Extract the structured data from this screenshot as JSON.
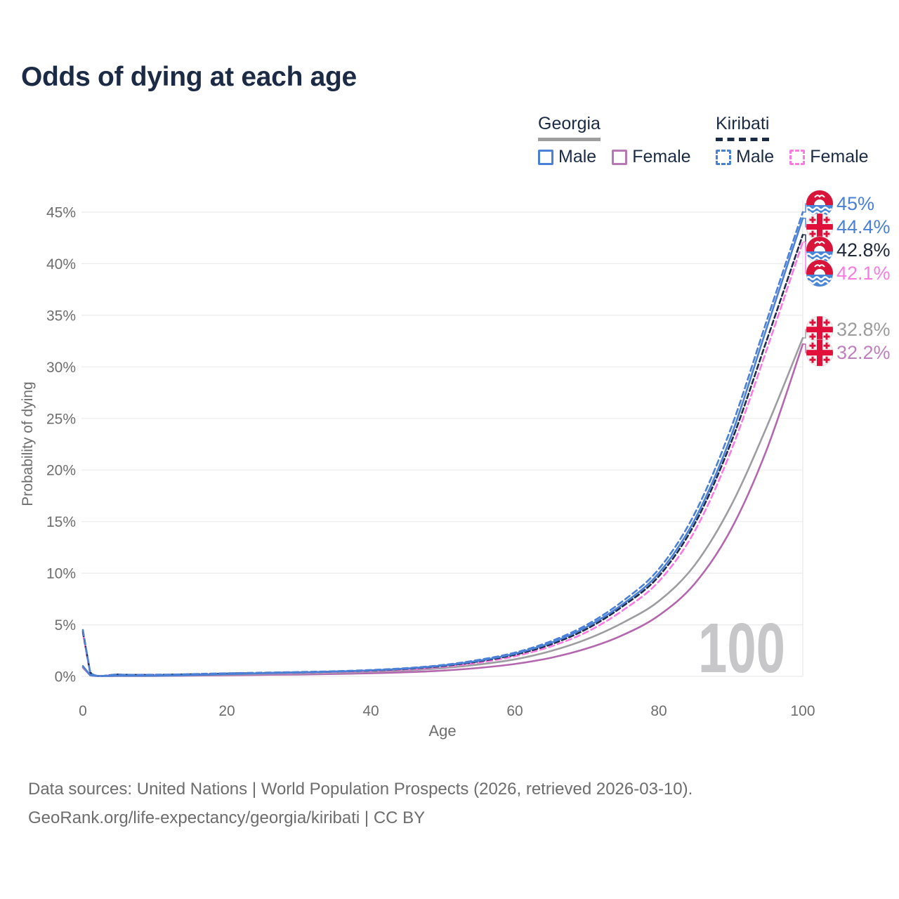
{
  "title": "Odds of dying at each age",
  "legend": {
    "groups": [
      {
        "label": "Georgia",
        "line_style": "solid",
        "line_color": "#9e9e9e",
        "items": [
          {
            "label": "Male",
            "color": "#4a80d5",
            "dashed": false
          },
          {
            "label": "Female",
            "color": "#b878b4",
            "dashed": false
          }
        ]
      },
      {
        "label": "Kiribati",
        "line_style": "dashed",
        "line_color": "#1c2b45",
        "items": [
          {
            "label": "Male",
            "color": "#4a80d5",
            "dashed": true
          },
          {
            "label": "Female",
            "color": "#f97ae1",
            "dashed": true
          }
        ]
      }
    ]
  },
  "watermark_age": "100",
  "footer": {
    "line1": "Data sources: United Nations | World Population Prospects (2026, retrieved 2026-03-10).",
    "line2": "GeoRank.org/life-expectancy/georgia/kiribati | CC BY"
  },
  "chart_data": {
    "type": "line",
    "title": "Odds of dying at each age",
    "xlabel": "Age",
    "ylabel": "Probability of dying",
    "xlim": [
      0,
      100
    ],
    "ylim": [
      0,
      46.5
    ],
    "x_ticks": [
      0,
      20,
      40,
      60,
      80,
      100
    ],
    "y_ticks": [
      0,
      5,
      10,
      15,
      20,
      25,
      30,
      35,
      40,
      45
    ],
    "y_tick_labels": [
      "0%",
      "5%",
      "10%",
      "15%",
      "20%",
      "25%",
      "30%",
      "35%",
      "40%",
      "45%"
    ],
    "grid": "horizontal",
    "legend_position": "top-right",
    "hover_age": 100,
    "series": [
      {
        "name": "Kiribati Male",
        "country": "Kiribati",
        "sex": "male",
        "color": "#4a80d5",
        "dash": "8 5",
        "flag": "kiribati",
        "end_label": "45%",
        "end_value": 45.0,
        "label_color": "#4a80d5",
        "points": [
          [
            0,
            4.5
          ],
          [
            1,
            0.42
          ],
          [
            5,
            0.18
          ],
          [
            10,
            0.16
          ],
          [
            15,
            0.22
          ],
          [
            20,
            0.3
          ],
          [
            25,
            0.36
          ],
          [
            30,
            0.42
          ],
          [
            35,
            0.5
          ],
          [
            40,
            0.62
          ],
          [
            45,
            0.8
          ],
          [
            50,
            1.1
          ],
          [
            55,
            1.6
          ],
          [
            60,
            2.3
          ],
          [
            65,
            3.4
          ],
          [
            70,
            5.0
          ],
          [
            75,
            7.3
          ],
          [
            80,
            10.4
          ],
          [
            85,
            15.8
          ],
          [
            90,
            24.0
          ],
          [
            95,
            34.5
          ],
          [
            100,
            45.0
          ]
        ]
      },
      {
        "name": "Georgia Male",
        "country": "Georgia",
        "sex": "male",
        "color": "#4a80d5",
        "dash": null,
        "flag": "georgia",
        "end_label": "44.4%",
        "end_value": 44.4,
        "label_color": "#4a80d5",
        "points": [
          [
            0,
            1.0
          ],
          [
            1,
            0.12
          ],
          [
            5,
            0.06
          ],
          [
            10,
            0.06
          ],
          [
            15,
            0.12
          ],
          [
            20,
            0.22
          ],
          [
            25,
            0.3
          ],
          [
            30,
            0.38
          ],
          [
            35,
            0.46
          ],
          [
            40,
            0.58
          ],
          [
            45,
            0.76
          ],
          [
            50,
            1.05
          ],
          [
            55,
            1.52
          ],
          [
            60,
            2.2
          ],
          [
            65,
            3.25
          ],
          [
            70,
            4.8
          ],
          [
            75,
            7.0
          ],
          [
            80,
            10.0
          ],
          [
            85,
            15.2
          ],
          [
            90,
            23.2
          ],
          [
            95,
            33.8
          ],
          [
            100,
            44.4
          ]
        ]
      },
      {
        "name": "Kiribati (both sexes)",
        "country": "Kiribati",
        "sex": "both",
        "color": "#1e2b49",
        "dash": "7 4",
        "flag": "kiribati",
        "end_label": "42.8%",
        "end_value": 42.8,
        "label_color": "#20283c",
        "points": [
          [
            0,
            4.35
          ],
          [
            1,
            0.4
          ],
          [
            5,
            0.17
          ],
          [
            10,
            0.15
          ],
          [
            15,
            0.2
          ],
          [
            20,
            0.27
          ],
          [
            25,
            0.33
          ],
          [
            30,
            0.38
          ],
          [
            35,
            0.46
          ],
          [
            40,
            0.56
          ],
          [
            45,
            0.73
          ],
          [
            50,
            1.0
          ],
          [
            55,
            1.45
          ],
          [
            60,
            2.1
          ],
          [
            65,
            3.1
          ],
          [
            70,
            4.6
          ],
          [
            75,
            6.8
          ],
          [
            80,
            9.7
          ],
          [
            85,
            14.8
          ],
          [
            90,
            22.6
          ],
          [
            95,
            32.6
          ],
          [
            100,
            42.8
          ]
        ]
      },
      {
        "name": "Kiribati Female",
        "country": "Kiribati",
        "sex": "female",
        "color": "#f97ae1",
        "dash": "8 5",
        "flag": "kiribati",
        "end_label": "42.1%",
        "end_value": 42.1,
        "label_color": "#f97ae1",
        "points": [
          [
            0,
            4.2
          ],
          [
            1,
            0.38
          ],
          [
            5,
            0.16
          ],
          [
            10,
            0.14
          ],
          [
            15,
            0.18
          ],
          [
            20,
            0.24
          ],
          [
            25,
            0.29
          ],
          [
            30,
            0.34
          ],
          [
            35,
            0.42
          ],
          [
            40,
            0.51
          ],
          [
            45,
            0.66
          ],
          [
            50,
            0.92
          ],
          [
            55,
            1.33
          ],
          [
            60,
            1.95
          ],
          [
            65,
            2.9
          ],
          [
            70,
            4.3
          ],
          [
            75,
            6.4
          ],
          [
            80,
            9.2
          ],
          [
            85,
            14.1
          ],
          [
            90,
            21.8
          ],
          [
            95,
            31.7
          ],
          [
            100,
            42.1
          ]
        ]
      },
      {
        "name": "Georgia (both sexes)",
        "country": "Georgia",
        "sex": "both",
        "color": "#9d9da1",
        "dash": null,
        "flag": "georgia",
        "end_label": "32.8%",
        "end_value": 32.8,
        "label_color": "#9b9b9b",
        "points": [
          [
            0,
            0.95
          ],
          [
            1,
            0.11
          ],
          [
            5,
            0.05
          ],
          [
            10,
            0.05
          ],
          [
            15,
            0.1
          ],
          [
            20,
            0.17
          ],
          [
            25,
            0.23
          ],
          [
            30,
            0.28
          ],
          [
            35,
            0.35
          ],
          [
            40,
            0.44
          ],
          [
            45,
            0.58
          ],
          [
            50,
            0.8
          ],
          [
            55,
            1.15
          ],
          [
            60,
            1.65
          ],
          [
            65,
            2.45
          ],
          [
            70,
            3.6
          ],
          [
            75,
            5.2
          ],
          [
            80,
            7.3
          ],
          [
            85,
            10.8
          ],
          [
            90,
            16.5
          ],
          [
            95,
            24.2
          ],
          [
            100,
            32.8
          ]
        ]
      },
      {
        "name": "Georgia Female",
        "country": "Georgia",
        "sex": "female",
        "color": "#b467af",
        "dash": null,
        "flag": "georgia",
        "end_label": "32.2%",
        "end_value": 32.2,
        "label_color": "#bf7fbe",
        "points": [
          [
            0,
            0.85
          ],
          [
            1,
            0.1
          ],
          [
            5,
            0.04
          ],
          [
            10,
            0.04
          ],
          [
            15,
            0.07
          ],
          [
            20,
            0.11
          ],
          [
            25,
            0.15
          ],
          [
            30,
            0.18
          ],
          [
            35,
            0.23
          ],
          [
            40,
            0.3
          ],
          [
            45,
            0.4
          ],
          [
            50,
            0.56
          ],
          [
            55,
            0.82
          ],
          [
            60,
            1.2
          ],
          [
            65,
            1.8
          ],
          [
            70,
            2.7
          ],
          [
            75,
            4.0
          ],
          [
            80,
            5.9
          ],
          [
            85,
            9.0
          ],
          [
            90,
            14.2
          ],
          [
            95,
            22.0
          ],
          [
            100,
            32.2
          ]
        ]
      }
    ]
  }
}
